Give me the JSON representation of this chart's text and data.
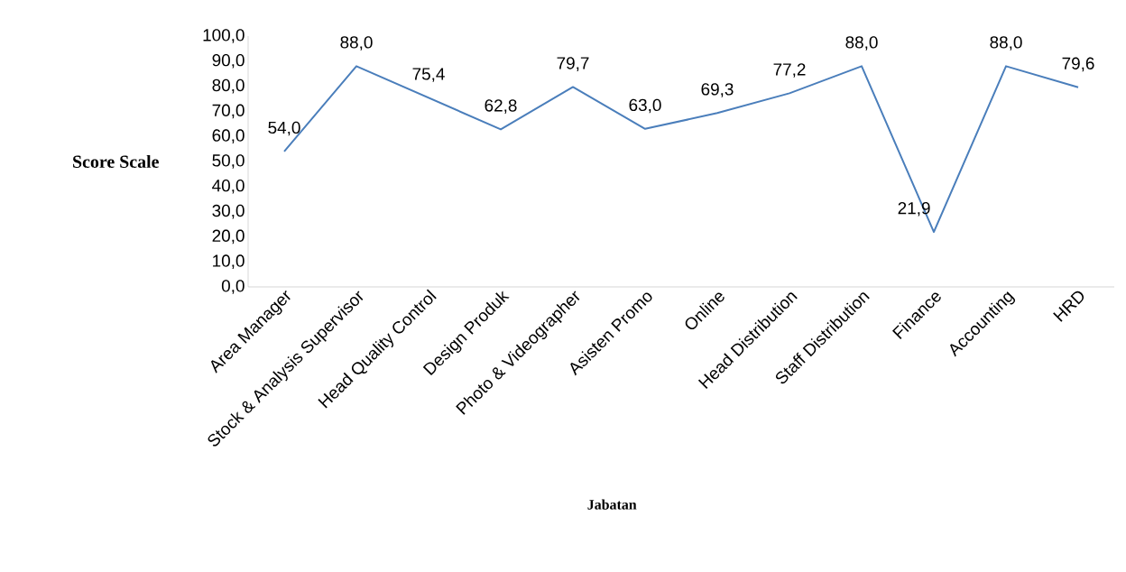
{
  "chart_data": {
    "type": "line",
    "xlabel": "Jabatan",
    "ylabel": "Score Scale",
    "categories": [
      "Area Manager",
      "Stock & Analysis Supervisor",
      "Head Quality Control",
      "Design Produk",
      "Photo & Videographer",
      "Asisten Promo",
      "Online",
      "Head Distribution",
      "Staff Distribution",
      "Finance",
      "Accounting",
      "HRD"
    ],
    "values": [
      54.0,
      88.0,
      75.4,
      62.8,
      79.7,
      63.0,
      69.3,
      77.2,
      88.0,
      21.9,
      88.0,
      79.6
    ],
    "value_labels": [
      "54,0",
      "88,0",
      "75,4",
      "62,8",
      "79,7",
      "63,0",
      "69,3",
      "77,2",
      "88,0",
      "21,9",
      "88,0",
      "79,6"
    ],
    "color": "#4a7ebb",
    "marker": "none",
    "line_style": "solid",
    "grid": false,
    "ylim": [
      0,
      100
    ],
    "yticks": [
      {
        "value": 0,
        "label": "0,0"
      },
      {
        "value": 10,
        "label": "10,0"
      },
      {
        "value": 20,
        "label": "20,0"
      },
      {
        "value": 30,
        "label": "30,0"
      },
      {
        "value": 40,
        "label": "40,0"
      },
      {
        "value": 50,
        "label": "50,0"
      },
      {
        "value": 60,
        "label": "60,0"
      },
      {
        "value": 70,
        "label": "70,0"
      },
      {
        "value": 80,
        "label": "80,0"
      },
      {
        "value": 90,
        "label": "90,0"
      },
      {
        "value": 100,
        "label": "100,0"
      }
    ]
  }
}
